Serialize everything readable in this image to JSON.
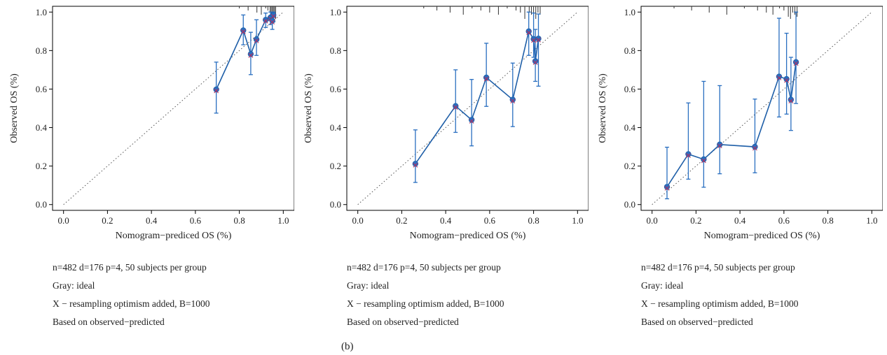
{
  "figure": {
    "caption": "(b)"
  },
  "colors": {
    "series": "#1f5fa8",
    "marker": "#2a6fc0",
    "optimism_x": "#b03060",
    "ideal": "#555555",
    "axis": "#000000",
    "rug": "#333333"
  },
  "chart_data": [
    {
      "type": "scatter",
      "xlabel": "Nomogram−prediced OS (%)",
      "ylabel": "Observed OS (%)",
      "xlim": [
        -0.05,
        1.05
      ],
      "ylim": [
        -0.03,
        1.03
      ],
      "xticks": [
        "0.0",
        "0.2",
        "0.4",
        "0.6",
        "0.8",
        "1.0"
      ],
      "yticks": [
        "0.0",
        "0.2",
        "0.4",
        "0.6",
        "0.8",
        "1.0"
      ],
      "ideal_line": true,
      "points": [
        {
          "x": 0.695,
          "y": 0.598,
          "lo": 0.475,
          "hi": 0.74
        },
        {
          "x": 0.818,
          "y": 0.905,
          "lo": 0.83,
          "hi": 0.985
        },
        {
          "x": 0.852,
          "y": 0.782,
          "lo": 0.675,
          "hi": 0.895
        },
        {
          "x": 0.878,
          "y": 0.858,
          "lo": 0.775,
          "hi": 0.96
        },
        {
          "x": 0.92,
          "y": 0.96,
          "lo": 0.92,
          "hi": 0.995
        },
        {
          "x": 0.942,
          "y": 0.972,
          "lo": 0.935,
          "hi": 1.0
        },
        {
          "x": 0.95,
          "y": 0.955,
          "lo": 0.91,
          "hi": 1.0
        },
        {
          "x": 0.955,
          "y": 0.985,
          "lo": 0.95,
          "hi": 1.0
        }
      ],
      "rug_x": [
        0.8,
        0.84,
        0.88,
        0.9,
        0.92,
        0.93,
        0.94,
        0.945,
        0.95,
        0.955,
        0.96,
        0.965
      ]
    },
    {
      "type": "scatter",
      "xlabel": "Nomogram−prediced OS (%)",
      "ylabel": "Observed OS (%)",
      "xlim": [
        -0.05,
        1.05
      ],
      "ylim": [
        -0.03,
        1.03
      ],
      "xticks": [
        "0.0",
        "0.2",
        "0.4",
        "0.6",
        "0.8",
        "1.0"
      ],
      "yticks": [
        "0.0",
        "0.2",
        "0.4",
        "0.6",
        "0.8",
        "1.0"
      ],
      "ideal_line": true,
      "points": [
        {
          "x": 0.262,
          "y": 0.212,
          "lo": 0.115,
          "hi": 0.388
        },
        {
          "x": 0.445,
          "y": 0.512,
          "lo": 0.375,
          "hi": 0.7
        },
        {
          "x": 0.518,
          "y": 0.44,
          "lo": 0.305,
          "hi": 0.65
        },
        {
          "x": 0.585,
          "y": 0.66,
          "lo": 0.51,
          "hi": 0.838
        },
        {
          "x": 0.705,
          "y": 0.545,
          "lo": 0.405,
          "hi": 0.735
        },
        {
          "x": 0.778,
          "y": 0.9,
          "lo": 0.775,
          "hi": 1.0
        },
        {
          "x": 0.8,
          "y": 0.86,
          "lo": 0.765,
          "hi": 0.995
        },
        {
          "x": 0.808,
          "y": 0.745,
          "lo": 0.64,
          "hi": 0.91
        },
        {
          "x": 0.822,
          "y": 0.862,
          "lo": 0.615,
          "hi": 0.99
        }
      ],
      "rug_x": [
        0.3,
        0.36,
        0.42,
        0.48,
        0.52,
        0.56,
        0.6,
        0.64,
        0.68,
        0.72,
        0.74,
        0.76,
        0.78,
        0.79,
        0.8,
        0.81,
        0.82,
        0.83
      ]
    },
    {
      "type": "scatter",
      "xlabel": "Nomogram−prediced OS (%)",
      "ylabel": "Observed OS (%)",
      "xlim": [
        -0.05,
        1.05
      ],
      "ylim": [
        -0.03,
        1.03
      ],
      "xticks": [
        "0.0",
        "0.2",
        "0.4",
        "0.6",
        "0.8",
        "1.0"
      ],
      "yticks": [
        "0.0",
        "0.2",
        "0.4",
        "0.6",
        "0.8",
        "1.0"
      ],
      "ideal_line": true,
      "points": [
        {
          "x": 0.068,
          "y": 0.092,
          "lo": 0.03,
          "hi": 0.298
        },
        {
          "x": 0.165,
          "y": 0.262,
          "lo": 0.132,
          "hi": 0.528
        },
        {
          "x": 0.235,
          "y": 0.235,
          "lo": 0.09,
          "hi": 0.64
        },
        {
          "x": 0.308,
          "y": 0.312,
          "lo": 0.16,
          "hi": 0.618
        },
        {
          "x": 0.468,
          "y": 0.3,
          "lo": 0.165,
          "hi": 0.548
        },
        {
          "x": 0.578,
          "y": 0.665,
          "lo": 0.455,
          "hi": 0.968
        },
        {
          "x": 0.612,
          "y": 0.652,
          "lo": 0.47,
          "hi": 0.89
        },
        {
          "x": 0.632,
          "y": 0.545,
          "lo": 0.385,
          "hi": 0.765
        },
        {
          "x": 0.655,
          "y": 0.74,
          "lo": 0.525,
          "hi": 1.0
        }
      ],
      "rug_x": [
        0.1,
        0.18,
        0.26,
        0.34,
        0.42,
        0.48,
        0.52,
        0.55,
        0.58,
        0.6,
        0.62,
        0.63,
        0.64,
        0.65,
        0.66
      ]
    }
  ],
  "panels": [
    {
      "notes": {
        "line1": "n=482 d=176 p=4, 50 subjects per group",
        "line2": "Gray: ideal",
        "line3": "X − resampling optimism added, B=1000",
        "line4": "Based on observed−predicted"
      }
    },
    {
      "notes": {
        "line1": "n=482 d=176 p=4, 50 subjects per group",
        "line2": "Gray: ideal",
        "line3": "X − resampling optimism added, B=1000",
        "line4": "Based on observed−predicted"
      }
    },
    {
      "notes": {
        "line1": "n=482 d=176 p=4, 50 subjects per group",
        "line2": "Gray: ideal",
        "line3": "X − resampling optimism added, B=1000",
        "line4": "Based on observed−predicted"
      }
    }
  ]
}
